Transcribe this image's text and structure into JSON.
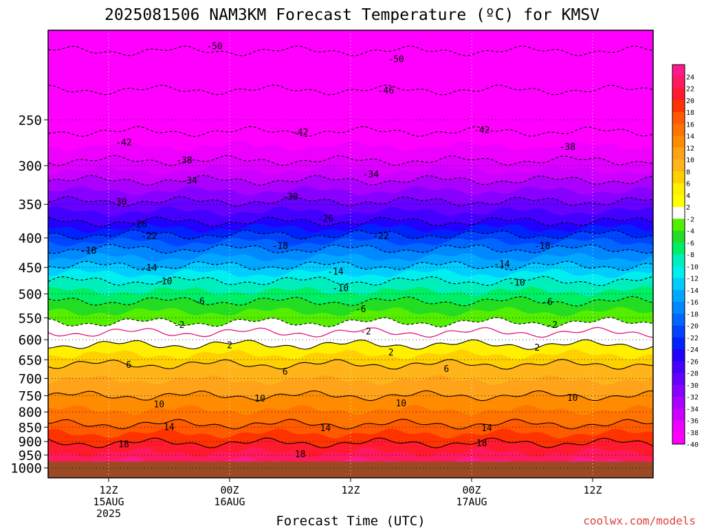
{
  "chart_data": {
    "type": "heatmap",
    "title": "2025081506 NAM3KM Forecast Temperature (ºC) for KMSV",
    "xlabel": "Forecast Time (UTC)",
    "ylabel": "",
    "credit": "coolwx.com/models",
    "x_range_hours": [
      0,
      60
    ],
    "y_range_hpa": [
      175,
      1040
    ],
    "y_scale": "log",
    "surface_pressure_hpa": 975,
    "grid": "dotted",
    "colorbar_position": "right",
    "y_ticks": [
      250,
      300,
      350,
      400,
      450,
      500,
      550,
      600,
      650,
      700,
      750,
      800,
      850,
      900,
      950,
      1000
    ],
    "x_ticks": [
      {
        "hour": 6,
        "lines": [
          "12Z",
          "15AUG",
          "2025"
        ]
      },
      {
        "hour": 18,
        "lines": [
          "00Z",
          "16AUG"
        ]
      },
      {
        "hour": 30,
        "lines": [
          "12Z"
        ]
      },
      {
        "hour": 42,
        "lines": [
          "00Z",
          "17AUG"
        ]
      },
      {
        "hour": 54,
        "lines": [
          "12Z"
        ]
      }
    ],
    "colorbar": {
      "labels": [
        "24",
        "22",
        "20",
        "18",
        "16",
        "14",
        "12",
        "10",
        "8",
        "6",
        "4",
        "2",
        "-2",
        "-4",
        "-6",
        "-8",
        "-10",
        "-12",
        "-14",
        "-16",
        "-18",
        "-20",
        "-22",
        "-24",
        "-26",
        "-28",
        "-30",
        "-32",
        "-34",
        "-36",
        "-38",
        "-40"
      ],
      "colors": [
        "#ff1a8c",
        "#ff1a5e",
        "#ff1a2e",
        "#ff3300",
        "#ff5a00",
        "#ff7300",
        "#ff8c00",
        "#ffa31a",
        "#ffb41a",
        "#ffd000",
        "#fff000",
        "#ffff00",
        "#ffffff",
        "#55ee00",
        "#22dd22",
        "#00ee66",
        "#00eebb",
        "#00eeee",
        "#00ccff",
        "#00a6ff",
        "#0088ff",
        "#0066ff",
        "#0044ff",
        "#0022ff",
        "#2200ff",
        "#4400ff",
        "#6600ff",
        "#8800ff",
        "#aa00ff",
        "#cc00ff",
        "#ee00ff",
        "#ff00ff"
      ]
    },
    "isotherm_heights_hpa": [
      {
        "t": -50,
        "p": 190
      },
      {
        "t": -46,
        "p": 222
      },
      {
        "t": -42,
        "p": 262
      },
      {
        "t": -38,
        "p": 294
      },
      {
        "t": -34,
        "p": 318
      },
      {
        "t": -30,
        "p": 346
      },
      {
        "t": -26,
        "p": 375
      },
      {
        "t": -22,
        "p": 395
      },
      {
        "t": -18,
        "p": 418
      },
      {
        "t": -14,
        "p": 447
      },
      {
        "t": -10,
        "p": 475
      },
      {
        "t": -6,
        "p": 515
      },
      {
        "t": -2,
        "p": 560
      },
      {
        "t": 0,
        "p": 583
      },
      {
        "t": 2,
        "p": 612
      },
      {
        "t": 6,
        "p": 662
      },
      {
        "t": 10,
        "p": 750
      },
      {
        "t": 14,
        "p": 840
      },
      {
        "t": 18,
        "p": 905
      }
    ],
    "contour_labels": [
      {
        "text": "-50",
        "hour": 16.5,
        "p": 186
      },
      {
        "text": "-50",
        "hour": 34.5,
        "p": 196
      },
      {
        "text": "-46",
        "hour": 33.5,
        "p": 222
      },
      {
        "text": "-42",
        "hour": 7.5,
        "p": 273
      },
      {
        "text": "-42",
        "hour": 25,
        "p": 262
      },
      {
        "text": "-42",
        "hour": 43,
        "p": 260
      },
      {
        "text": "-38",
        "hour": 13.5,
        "p": 293
      },
      {
        "text": "-38",
        "hour": 51.5,
        "p": 278
      },
      {
        "text": "-34",
        "hour": 14,
        "p": 318
      },
      {
        "text": "-34",
        "hour": 32,
        "p": 310
      },
      {
        "text": "-30",
        "hour": 7,
        "p": 346
      },
      {
        "text": "-30",
        "hour": 24,
        "p": 339
      },
      {
        "text": "-26",
        "hour": 9,
        "p": 378
      },
      {
        "text": "-26",
        "hour": 27.5,
        "p": 370
      },
      {
        "text": "-22",
        "hour": 10,
        "p": 396
      },
      {
        "text": "-22",
        "hour": 33,
        "p": 396
      },
      {
        "text": "-18",
        "hour": 4,
        "p": 420
      },
      {
        "text": "-18",
        "hour": 23,
        "p": 412
      },
      {
        "text": "-18",
        "hour": 49,
        "p": 412
      },
      {
        "text": "-14",
        "hour": 10,
        "p": 450
      },
      {
        "text": "-14",
        "hour": 28.5,
        "p": 457
      },
      {
        "text": "-14",
        "hour": 45,
        "p": 443
      },
      {
        "text": "-10",
        "hour": 11.5,
        "p": 475
      },
      {
        "text": "-10",
        "hour": 29,
        "p": 488
      },
      {
        "text": "-10",
        "hour": 46.5,
        "p": 477
      },
      {
        "text": "-6",
        "hour": 15,
        "p": 514
      },
      {
        "text": "-6",
        "hour": 31,
        "p": 530
      },
      {
        "text": "-6",
        "hour": 49.5,
        "p": 515
      },
      {
        "text": "-2",
        "hour": 13,
        "p": 565
      },
      {
        "text": "-2",
        "hour": 31.5,
        "p": 580
      },
      {
        "text": "-2",
        "hour": 50,
        "p": 565
      },
      {
        "text": "2",
        "hour": 18,
        "p": 612
      },
      {
        "text": "2",
        "hour": 34,
        "p": 630
      },
      {
        "text": "2",
        "hour": 48.5,
        "p": 618
      },
      {
        "text": "6",
        "hour": 8,
        "p": 662
      },
      {
        "text": "6",
        "hour": 23.5,
        "p": 680
      },
      {
        "text": "6",
        "hour": 39.5,
        "p": 673
      },
      {
        "text": "10",
        "hour": 11,
        "p": 775
      },
      {
        "text": "10",
        "hour": 21,
        "p": 757
      },
      {
        "text": "10",
        "hour": 35,
        "p": 772
      },
      {
        "text": "10",
        "hour": 52,
        "p": 755
      },
      {
        "text": "14",
        "hour": 12,
        "p": 848
      },
      {
        "text": "14",
        "hour": 27.5,
        "p": 852
      },
      {
        "text": "14",
        "hour": 43.5,
        "p": 852
      },
      {
        "text": "18",
        "hour": 7.5,
        "p": 908
      },
      {
        "text": "18",
        "hour": 25,
        "p": 945
      },
      {
        "text": "18",
        "hour": 43,
        "p": 905
      }
    ]
  }
}
